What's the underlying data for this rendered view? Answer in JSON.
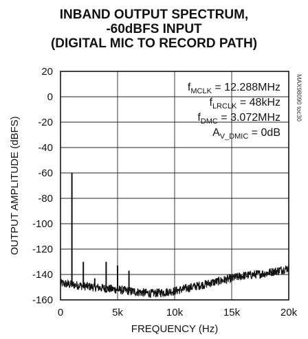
{
  "chart_data": {
    "type": "line",
    "title_lines": [
      "INBAND OUTPUT SPECTRUM,",
      "-60dBFS INPUT",
      "(DIGITAL MIC TO RECORD PATH)"
    ],
    "xlabel": "FREQUENCY (Hz)",
    "ylabel": "OUTPUT AMPLITUDE (dBFS)",
    "xlim": [
      0,
      20000
    ],
    "ylim": [
      -160,
      20
    ],
    "x_ticks": [
      0,
      5000,
      10000,
      15000,
      20000
    ],
    "x_tick_labels": [
      "0",
      "5k",
      "10k",
      "15k",
      "20k"
    ],
    "y_ticks": [
      20,
      0,
      -20,
      -40,
      -60,
      -80,
      -100,
      -120,
      -140,
      -160
    ],
    "y_tick_labels": [
      "20",
      "0",
      "-20",
      "-40",
      "-60",
      "-80",
      "-100",
      "-120",
      "-140",
      "-160"
    ],
    "grid": true,
    "annotations": [
      {
        "main": "f",
        "sub": "MCLK",
        "rest": " = 12.288MHz"
      },
      {
        "main": "f",
        "sub": "LRCLK",
        "rest": " = 48kHz"
      },
      {
        "main": "f",
        "sub": "DMC",
        "rest": " = 3.072MHz"
      },
      {
        "main": "A",
        "sub": "V_DMIC",
        "rest": " = 0dB"
      }
    ],
    "watermark": "MAX98090 toc30",
    "series": [
      {
        "color": "#111111",
        "noise_floor": {
          "x": [
            0,
            1000,
            2000,
            3000,
            4000,
            5000,
            6000,
            7000,
            8000,
            9000,
            10000,
            11000,
            12000,
            13000,
            14000,
            15000,
            16000,
            17000,
            18000,
            19000,
            20000
          ],
          "y": [
            -147,
            -148,
            -149,
            -150,
            -151,
            -152,
            -153,
            -154,
            -155,
            -154,
            -153,
            -151,
            -149,
            -147,
            -145,
            -143,
            -141,
            -140,
            -139,
            -137,
            -135
          ]
        },
        "spurs": [
          {
            "x": 1000,
            "y": -60
          },
          {
            "x": 2000,
            "y": -130
          },
          {
            "x": 3000,
            "y": -143
          },
          {
            "x": 4000,
            "y": -130
          },
          {
            "x": 5000,
            "y": -133
          },
          {
            "x": 6000,
            "y": -137
          }
        ]
      }
    ]
  }
}
